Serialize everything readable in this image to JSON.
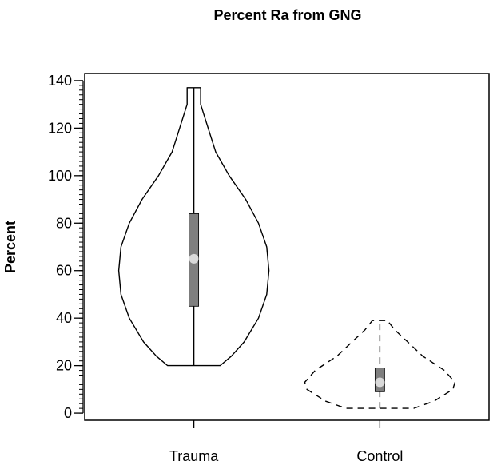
{
  "chart_data": {
    "type": "violin",
    "title": "Percent Ra from GNG",
    "ylabel": "Percent",
    "xlabel": "",
    "ylim": [
      -3,
      143
    ],
    "yticks": [
      0,
      20,
      40,
      60,
      80,
      100,
      120,
      140
    ],
    "yminor_step": 2,
    "grid": false,
    "categories": [
      "Trauma",
      "Control"
    ],
    "violins": [
      {
        "category": "Trauma",
        "line_style": "solid",
        "min": 20,
        "q1": 45,
        "median": 65,
        "q3": 84,
        "max": 137,
        "density_profile": [
          [
            20,
            0.35
          ],
          [
            24,
            0.5
          ],
          [
            30,
            0.67
          ],
          [
            40,
            0.86
          ],
          [
            50,
            0.97
          ],
          [
            60,
            1.0
          ],
          [
            70,
            0.97
          ],
          [
            80,
            0.86
          ],
          [
            90,
            0.69
          ],
          [
            100,
            0.47
          ],
          [
            110,
            0.29
          ],
          [
            120,
            0.19
          ],
          [
            130,
            0.09
          ],
          [
            137,
            0.09
          ]
        ]
      },
      {
        "category": "Control",
        "line_style": "dashed",
        "min": 2,
        "q1": 9,
        "median": 13,
        "q3": 19,
        "max": 39,
        "density_profile": [
          [
            2,
            0.45
          ],
          [
            5,
            0.72
          ],
          [
            10,
            0.97
          ],
          [
            13,
            1.0
          ],
          [
            18,
            0.86
          ],
          [
            24,
            0.57
          ],
          [
            30,
            0.37
          ],
          [
            35,
            0.2
          ],
          [
            39,
            0.1
          ]
        ]
      }
    ],
    "colors": {
      "box": "#7f7f7f",
      "median_point": "#d9d9d9",
      "outline": "#000000"
    }
  }
}
